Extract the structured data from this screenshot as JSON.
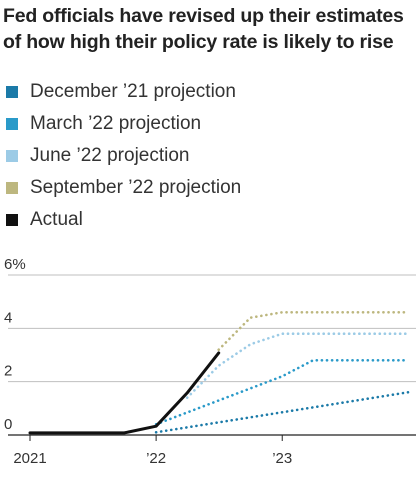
{
  "chart_data": {
    "type": "line",
    "title": "Fed officials have revised up their estimates of how high their policy rate is likely to rise",
    "ylim": [
      0,
      6
    ],
    "y_ticks": [
      {
        "value": 0,
        "label": "0"
      },
      {
        "value": 2,
        "label": "2"
      },
      {
        "value": 4,
        "label": "4"
      },
      {
        "value": 6,
        "label": "6%"
      }
    ],
    "x_ticks": [
      {
        "value": "2021-01-01",
        "label": "2021"
      },
      {
        "value": "2022-01-01",
        "label": "’22"
      },
      {
        "value": "2023-01-01",
        "label": "’23"
      }
    ],
    "xlim": [
      "2021-01-01",
      "2023-12-31"
    ],
    "legend_position": "top-left",
    "series": [
      {
        "name": "December ’21 projection",
        "color": "#1b7aa8",
        "style": "dotted",
        "points": [
          [
            "2022-01-01",
            0.1
          ],
          [
            "2023-12-31",
            1.6
          ]
        ]
      },
      {
        "name": "March ’22 projection",
        "color": "#2a9ac9",
        "style": "dotted",
        "points": [
          [
            "2022-01-01",
            0.4
          ],
          [
            "2023-01-01",
            2.2
          ],
          [
            "2023-03-31",
            2.8
          ],
          [
            "2023-12-31",
            2.8
          ]
        ]
      },
      {
        "name": "June ’22 projection",
        "color": "#9ccbe6",
        "style": "dotted",
        "points": [
          [
            "2022-04-01",
            1.4
          ],
          [
            "2022-07-01",
            2.6
          ],
          [
            "2022-10-01",
            3.4
          ],
          [
            "2023-01-01",
            3.8
          ],
          [
            "2023-12-31",
            3.8
          ]
        ]
      },
      {
        "name": "September ’22 projection",
        "color": "#bdb77f",
        "style": "dotted",
        "points": [
          [
            "2022-07-01",
            3.2
          ],
          [
            "2022-10-01",
            4.4
          ],
          [
            "2023-01-01",
            4.6
          ],
          [
            "2023-12-31",
            4.6
          ]
        ]
      },
      {
        "name": "Actual",
        "color": "#111111",
        "style": "solid",
        "points": [
          [
            "2021-01-01",
            0.08
          ],
          [
            "2021-10-01",
            0.08
          ],
          [
            "2022-01-01",
            0.33
          ],
          [
            "2022-04-01",
            1.58
          ],
          [
            "2022-07-01",
            3.08
          ]
        ]
      }
    ]
  }
}
